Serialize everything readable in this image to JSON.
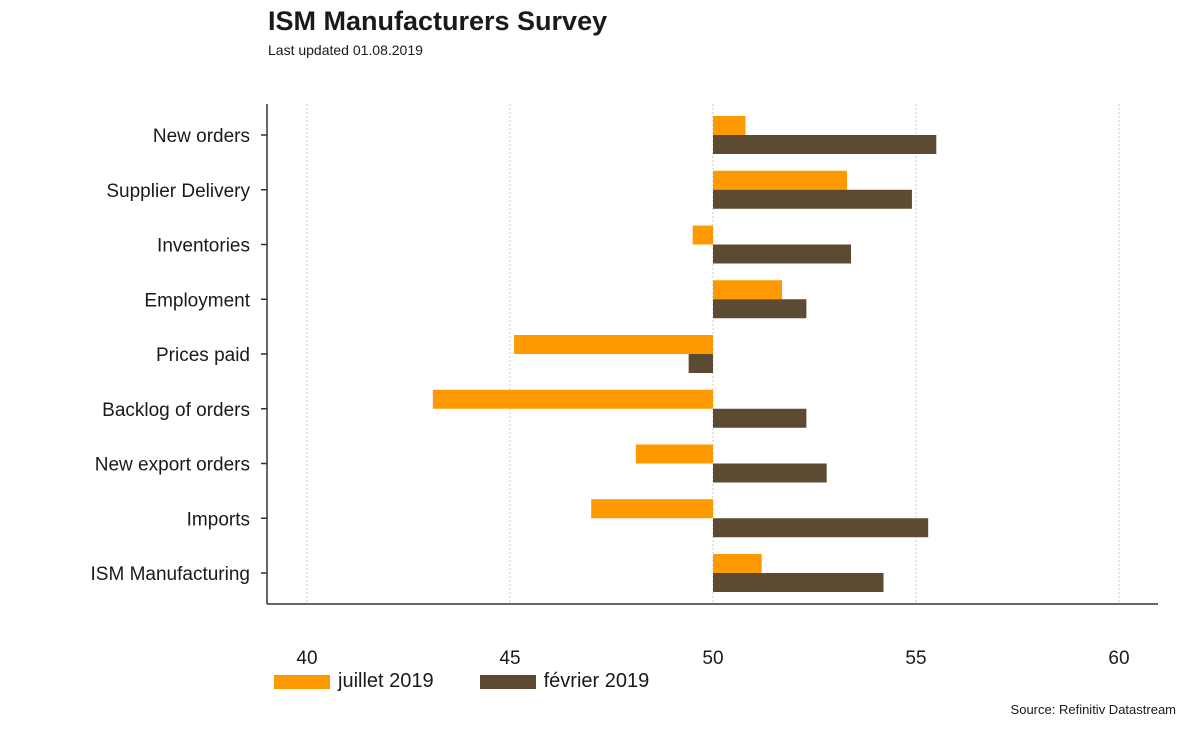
{
  "header": {
    "title": "ISM Manufacturers Survey",
    "subtitle": "Last updated 01.08.2019"
  },
  "source": "Source: Refinitiv Datastream",
  "colors": {
    "juillet": "#FF9900",
    "fevrier": "#5C4A32",
    "axis": "#333333",
    "grid": "#c8c8c8"
  },
  "chart_data": {
    "type": "bar",
    "orientation": "horizontal",
    "baseline": 50,
    "categories": [
      "New orders",
      "Supplier Delivery",
      "Inventories",
      "Employment",
      "Prices paid",
      "Backlog of orders",
      "New export orders",
      "Imports",
      "ISM Manufacturing"
    ],
    "series": [
      {
        "name": "juillet 2019",
        "values": [
          50.8,
          53.3,
          49.5,
          51.7,
          45.1,
          43.1,
          48.1,
          47.0,
          51.2
        ]
      },
      {
        "name": "février 2019",
        "values": [
          55.5,
          54.9,
          53.4,
          52.3,
          49.4,
          52.3,
          52.8,
          55.3,
          54.2
        ]
      }
    ],
    "xlim": [
      39,
      61
    ],
    "xticks": [
      "40",
      "45",
      "50",
      "55",
      "60"
    ],
    "xtick_values": [
      40,
      45,
      50,
      55,
      60
    ],
    "grid": "vertical dotted",
    "legend": "bottom-left"
  }
}
